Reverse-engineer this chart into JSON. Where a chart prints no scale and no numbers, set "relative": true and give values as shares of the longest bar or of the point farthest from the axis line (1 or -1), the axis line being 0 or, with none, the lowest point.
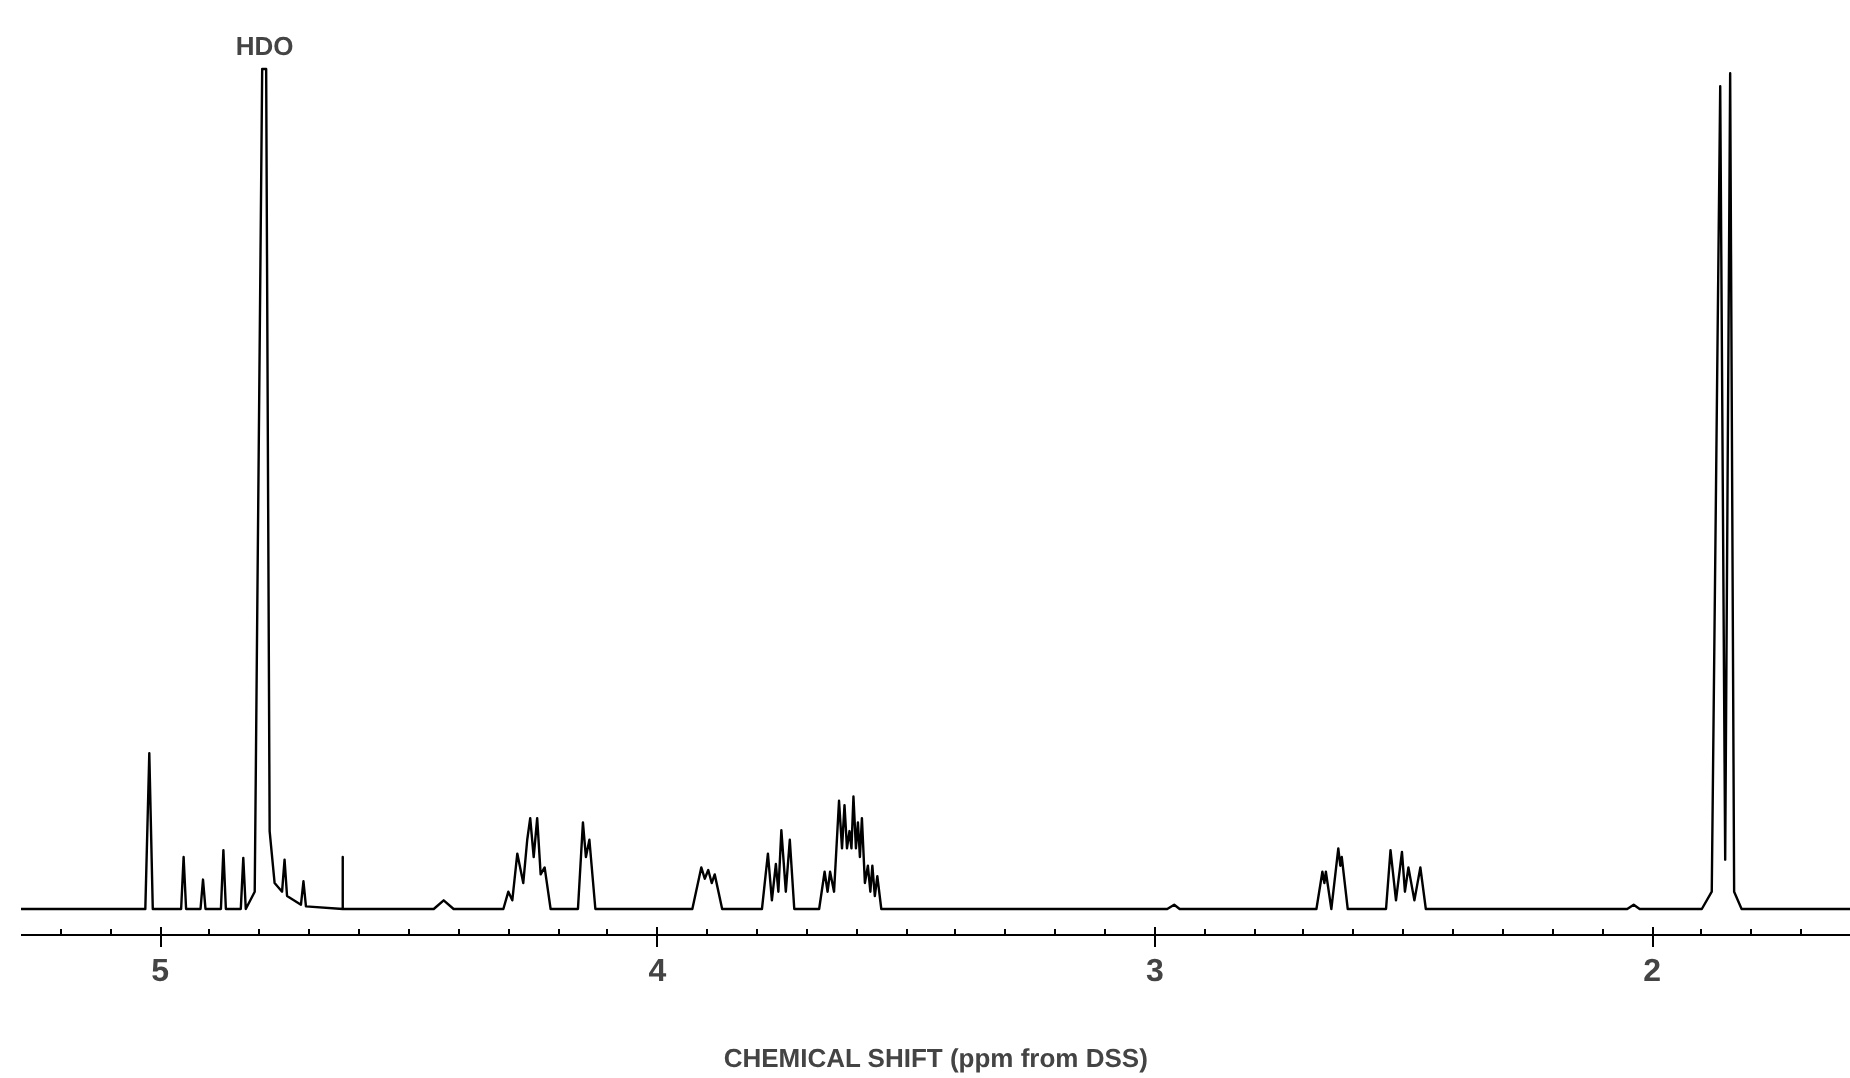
{
  "chart_data": {
    "type": "line",
    "relative": true,
    "xlabel": "CHEMICAL SHIFT (ppm from DSS)",
    "annotations": [
      {
        "text": "HDO",
        "x": 4.79,
        "y": 1.0
      }
    ],
    "xlim": [
      5.28,
      1.6
    ],
    "xticks": [
      {
        "value": 5.2,
        "label": null
      },
      {
        "value": 5.1,
        "label": null
      },
      5,
      {
        "value": 4.9,
        "label": null
      },
      {
        "value": 4.8,
        "label": null
      },
      {
        "value": 4.7,
        "label": null
      },
      {
        "value": 4.6,
        "label": null
      },
      {
        "value": 4.5,
        "label": null
      },
      {
        "value": 4.4,
        "label": null
      },
      {
        "value": 4.3,
        "label": null
      },
      {
        "value": 4.2,
        "label": null
      },
      {
        "value": 4.1,
        "label": null
      },
      4,
      {
        "value": 3.9,
        "label": null
      },
      {
        "value": 3.8,
        "label": null
      },
      {
        "value": 3.7,
        "label": null
      },
      {
        "value": 3.6,
        "label": null
      },
      {
        "value": 3.5,
        "label": null
      },
      {
        "value": 3.4,
        "label": null
      },
      {
        "value": 3.3,
        "label": null
      },
      {
        "value": 3.2,
        "label": null
      },
      {
        "value": 3.1,
        "label": null
      },
      3,
      {
        "value": 2.9,
        "label": null
      },
      {
        "value": 2.8,
        "label": null
      },
      {
        "value": 2.7,
        "label": null
      },
      {
        "value": 2.6,
        "label": null
      },
      {
        "value": 2.5,
        "label": null
      },
      {
        "value": 2.4,
        "label": null
      },
      {
        "value": 2.3,
        "label": null
      },
      {
        "value": 2.2,
        "label": null
      },
      {
        "value": 2.1,
        "label": null
      },
      2,
      {
        "value": 1.9,
        "label": null
      },
      {
        "value": 1.8,
        "label": null
      },
      {
        "value": 1.7,
        "label": null
      }
    ],
    "line_style": "solid",
    "series": [
      {
        "color": "#000000",
        "x": [
          5.28,
          5.03,
          5.022,
          5.015,
          4.958,
          4.953,
          4.948,
          4.919,
          4.914,
          4.909,
          4.878,
          4.873,
          4.868,
          4.838,
          4.833,
          4.828,
          4.81,
          4.795,
          4.787,
          4.78,
          4.77,
          4.755,
          4.75,
          4.745,
          4.717,
          4.712,
          4.707,
          4.633,
          4.633,
          4.633,
          4.45,
          4.43,
          4.41,
          4.31,
          4.3,
          4.292,
          4.282,
          4.27,
          4.262,
          4.256,
          4.249,
          4.242,
          4.235,
          4.227,
          4.215,
          4.16,
          4.15,
          4.144,
          4.137,
          4.125,
          3.93,
          3.912,
          3.905,
          3.898,
          3.891,
          3.885,
          3.87,
          3.79,
          3.778,
          3.77,
          3.762,
          3.757,
          3.751,
          3.742,
          3.734,
          3.725,
          3.675,
          3.664,
          3.658,
          3.653,
          3.645,
          3.635,
          3.629,
          3.624,
          3.619,
          3.614,
          3.61,
          3.606,
          3.601,
          3.597,
          3.593,
          3.589,
          3.583,
          3.577,
          3.572,
          3.568,
          3.563,
          3.558,
          3.55,
          2.975,
          2.961,
          2.95,
          2.675,
          2.663,
          2.659,
          2.656,
          2.645,
          2.631,
          2.627,
          2.624,
          2.612,
          2.535,
          2.526,
          2.515,
          2.503,
          2.497,
          2.49,
          2.478,
          2.466,
          2.455,
          2.05,
          2.037,
          2.025,
          1.9,
          1.88,
          1.863,
          1.853,
          1.843,
          1.835,
          1.82,
          1.6
        ],
        "values": [
          0.03,
          0.03,
          0.21,
          0.03,
          0.03,
          0.09,
          0.03,
          0.03,
          0.064,
          0.03,
          0.03,
          0.098,
          0.03,
          0.03,
          0.089,
          0.03,
          0.05,
          1.0,
          1.0,
          0.12,
          0.06,
          0.05,
          0.087,
          0.045,
          0.035,
          0.062,
          0.033,
          0.03,
          0.09,
          0.03,
          0.03,
          0.04,
          0.03,
          0.03,
          0.05,
          0.04,
          0.094,
          0.06,
          0.11,
          0.135,
          0.09,
          0.135,
          0.07,
          0.078,
          0.03,
          0.03,
          0.13,
          0.09,
          0.11,
          0.03,
          0.03,
          0.078,
          0.065,
          0.075,
          0.06,
          0.07,
          0.03,
          0.03,
          0.094,
          0.04,
          0.082,
          0.05,
          0.121,
          0.05,
          0.11,
          0.03,
          0.03,
          0.073,
          0.05,
          0.073,
          0.05,
          0.155,
          0.1,
          0.15,
          0.1,
          0.12,
          0.1,
          0.16,
          0.1,
          0.13,
          0.09,
          0.135,
          0.06,
          0.08,
          0.05,
          0.08,
          0.045,
          0.068,
          0.03,
          0.03,
          0.035,
          0.03,
          0.03,
          0.073,
          0.06,
          0.073,
          0.03,
          0.1,
          0.08,
          0.09,
          0.03,
          0.03,
          0.098,
          0.04,
          0.096,
          0.05,
          0.078,
          0.04,
          0.078,
          0.03,
          0.03,
          0.035,
          0.03,
          0.03,
          0.05,
          0.98,
          0.087,
          0.995,
          0.05,
          0.03,
          0.03
        ]
      }
    ]
  }
}
